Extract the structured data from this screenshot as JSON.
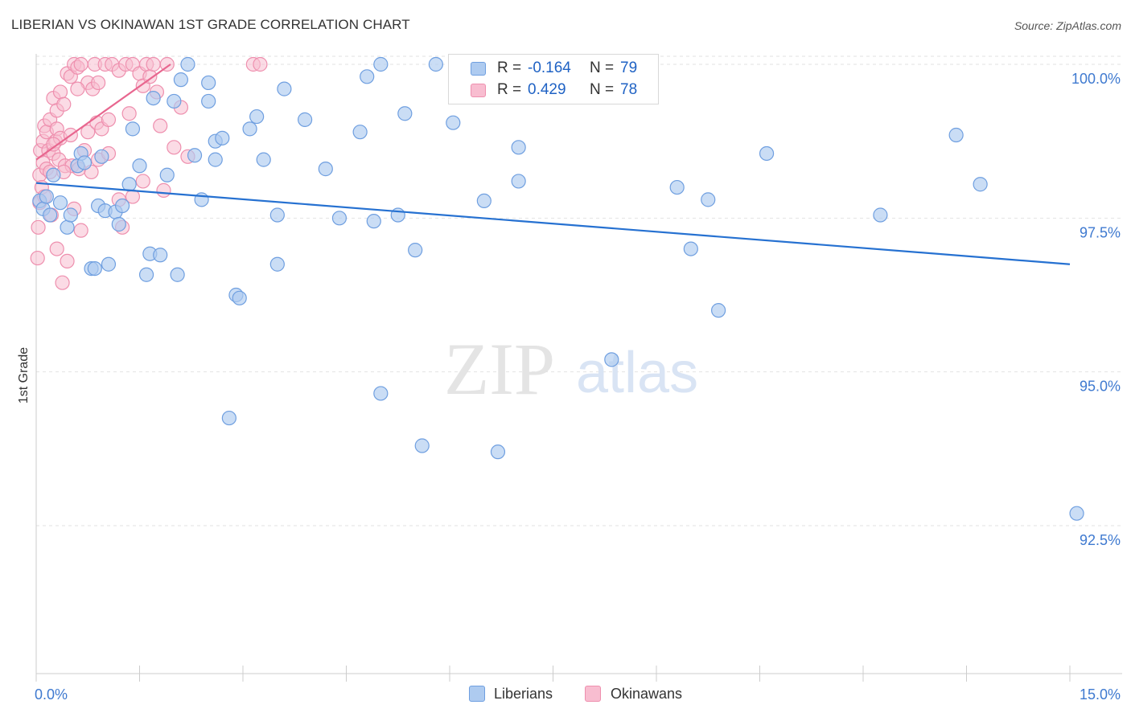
{
  "header": {
    "title": "LIBERIAN VS OKINAWAN 1ST GRADE CORRELATION CHART",
    "source": "Source: ZipAtlas.com"
  },
  "watermark": {
    "zip": "ZIP",
    "atlas": "atlas"
  },
  "legend_stats": [
    {
      "r_label": "R =",
      "r_value": "-0.164",
      "n_label": "N =",
      "n_value": "79"
    },
    {
      "r_label": "R =",
      "r_value": "0.429",
      "n_label": "N =",
      "n_value": "78"
    }
  ],
  "legend": [
    {
      "name": "Liberians"
    },
    {
      "name": "Okinawans"
    }
  ],
  "chart_data": {
    "type": "scatter",
    "title": "LIBERIAN VS OKINAWAN 1ST GRADE CORRELATION CHART",
    "xlabel": "",
    "ylabel": "1st Grade",
    "xlim": [
      0,
      15
    ],
    "ylim": [
      90.2,
      100.5
    ],
    "x_tick_labels": [
      "0.0%",
      "15.0%"
    ],
    "y_ticks": [
      92.5,
      95.0,
      97.5,
      100.0
    ],
    "y_tick_labels": [
      "92.5%",
      "95.0%",
      "97.5%",
      "100.0%"
    ],
    "grid": true,
    "legend_position": "bottom-center",
    "colors": {
      "liberians_fill": "#aecbf0",
      "liberians_stroke": "#6f9fe0",
      "liberians_line": "#2671d1",
      "okinawans_fill": "#f8bdd0",
      "okinawans_stroke": "#ee8fae",
      "okinawans_line": "#e8668f",
      "tick_label": "#3f7ad0"
    },
    "series": [
      {
        "name": "Liberians",
        "r": -0.164,
        "n": 79,
        "trend": {
          "x": [
            0.0,
            15.0
          ],
          "y": [
            98.07,
            96.75
          ]
        },
        "points": [
          [
            0.05,
            97.78
          ],
          [
            0.1,
            97.65
          ],
          [
            0.15,
            97.85
          ],
          [
            0.2,
            97.55
          ],
          [
            0.25,
            98.2
          ],
          [
            0.35,
            97.75
          ],
          [
            0.45,
            97.35
          ],
          [
            0.5,
            97.55
          ],
          [
            0.6,
            98.35
          ],
          [
            0.65,
            98.55
          ],
          [
            0.7,
            98.4
          ],
          [
            0.8,
            96.68
          ],
          [
            0.85,
            96.68
          ],
          [
            0.9,
            97.7
          ],
          [
            0.95,
            98.5
          ],
          [
            1.0,
            97.62
          ],
          [
            1.05,
            96.75
          ],
          [
            1.15,
            97.6
          ],
          [
            1.2,
            97.4
          ],
          [
            1.25,
            97.7
          ],
          [
            1.35,
            98.05
          ],
          [
            1.4,
            98.95
          ],
          [
            1.5,
            98.35
          ],
          [
            1.6,
            96.58
          ],
          [
            1.65,
            96.92
          ],
          [
            1.7,
            99.45
          ],
          [
            1.8,
            96.9
          ],
          [
            1.9,
            98.2
          ],
          [
            2.0,
            99.4
          ],
          [
            2.05,
            96.58
          ],
          [
            2.1,
            99.75
          ],
          [
            2.2,
            100.0
          ],
          [
            2.3,
            98.52
          ],
          [
            2.4,
            97.8
          ],
          [
            2.5,
            99.7
          ],
          [
            2.5,
            99.4
          ],
          [
            2.6,
            98.75
          ],
          [
            2.6,
            98.45
          ],
          [
            2.7,
            98.8
          ],
          [
            2.8,
            94.25
          ],
          [
            2.9,
            96.25
          ],
          [
            2.95,
            96.2
          ],
          [
            3.1,
            98.95
          ],
          [
            3.2,
            99.15
          ],
          [
            3.3,
            98.45
          ],
          [
            3.5,
            96.75
          ],
          [
            3.5,
            97.55
          ],
          [
            3.6,
            99.6
          ],
          [
            3.9,
            99.1
          ],
          [
            4.2,
            98.3
          ],
          [
            4.4,
            97.5
          ],
          [
            4.7,
            98.9
          ],
          [
            4.8,
            99.8
          ],
          [
            4.9,
            97.45
          ],
          [
            5.0,
            94.65
          ],
          [
            5.0,
            100.0
          ],
          [
            5.25,
            97.55
          ],
          [
            5.35,
            99.2
          ],
          [
            5.5,
            96.98
          ],
          [
            5.6,
            93.8
          ],
          [
            5.8,
            100.0
          ],
          [
            6.05,
            99.05
          ],
          [
            6.25,
            99.55
          ],
          [
            6.35,
            99.55
          ],
          [
            6.5,
            97.78
          ],
          [
            6.7,
            93.7
          ],
          [
            7.0,
            98.1
          ],
          [
            7.0,
            98.65
          ],
          [
            7.0,
            100.0
          ],
          [
            8.35,
            95.2
          ],
          [
            9.3,
            98.0
          ],
          [
            9.5,
            97.0
          ],
          [
            9.75,
            97.8
          ],
          [
            9.9,
            96.0
          ],
          [
            10.6,
            98.55
          ],
          [
            12.25,
            97.55
          ],
          [
            13.35,
            98.85
          ],
          [
            13.7,
            98.05
          ],
          [
            15.1,
            92.7
          ]
        ]
      },
      {
        "name": "Okinawans",
        "r": 0.429,
        "n": 78,
        "trend": {
          "x": [
            0.0,
            1.95
          ],
          "y": [
            98.45,
            100.0
          ]
        },
        "points": [
          [
            0.02,
            96.85
          ],
          [
            0.03,
            97.35
          ],
          [
            0.05,
            97.75
          ],
          [
            0.05,
            98.2
          ],
          [
            0.06,
            98.6
          ],
          [
            0.08,
            98.0
          ],
          [
            0.1,
            98.75
          ],
          [
            0.1,
            98.4
          ],
          [
            0.12,
            99.0
          ],
          [
            0.12,
            97.85
          ],
          [
            0.15,
            98.3
          ],
          [
            0.15,
            98.9
          ],
          [
            0.18,
            98.6
          ],
          [
            0.2,
            98.25
          ],
          [
            0.2,
            99.1
          ],
          [
            0.22,
            97.55
          ],
          [
            0.25,
            98.55
          ],
          [
            0.25,
            99.45
          ],
          [
            0.28,
            98.75
          ],
          [
            0.3,
            98.95
          ],
          [
            0.3,
            99.25
          ],
          [
            0.3,
            97.0
          ],
          [
            0.33,
            98.45
          ],
          [
            0.35,
            99.55
          ],
          [
            0.35,
            98.8
          ],
          [
            0.38,
            96.45
          ],
          [
            0.4,
            99.35
          ],
          [
            0.42,
            98.35
          ],
          [
            0.45,
            99.85
          ],
          [
            0.45,
            96.8
          ],
          [
            0.5,
            98.85
          ],
          [
            0.5,
            99.8
          ],
          [
            0.52,
            98.35
          ],
          [
            0.55,
            100.0
          ],
          [
            0.55,
            97.65
          ],
          [
            0.6,
            99.95
          ],
          [
            0.62,
            98.3
          ],
          [
            0.65,
            100.0
          ],
          [
            0.65,
            97.3
          ],
          [
            0.7,
            98.6
          ],
          [
            0.75,
            98.9
          ],
          [
            0.75,
            99.7
          ],
          [
            0.8,
            98.25
          ],
          [
            0.82,
            99.6
          ],
          [
            0.85,
            100.0
          ],
          [
            0.88,
            99.05
          ],
          [
            0.9,
            98.45
          ],
          [
            0.9,
            99.7
          ],
          [
            0.95,
            98.95
          ],
          [
            1.0,
            100.0
          ],
          [
            1.05,
            98.55
          ],
          [
            1.05,
            99.1
          ],
          [
            1.1,
            100.0
          ],
          [
            1.2,
            97.8
          ],
          [
            1.2,
            99.9
          ],
          [
            1.25,
            97.35
          ],
          [
            1.3,
            100.0
          ],
          [
            1.35,
            99.2
          ],
          [
            1.4,
            97.85
          ],
          [
            1.4,
            100.0
          ],
          [
            1.5,
            99.85
          ],
          [
            1.55,
            98.1
          ],
          [
            1.55,
            99.65
          ],
          [
            1.6,
            100.0
          ],
          [
            1.65,
            99.8
          ],
          [
            1.7,
            100.0
          ],
          [
            1.75,
            99.55
          ],
          [
            1.8,
            99.0
          ],
          [
            1.85,
            97.95
          ],
          [
            1.9,
            100.0
          ],
          [
            2.0,
            98.65
          ],
          [
            2.1,
            99.3
          ],
          [
            2.2,
            98.5
          ],
          [
            0.25,
            98.7
          ],
          [
            0.4,
            98.25
          ],
          [
            0.6,
            99.6
          ],
          [
            3.15,
            100.0
          ],
          [
            3.25,
            100.0
          ]
        ]
      }
    ]
  }
}
